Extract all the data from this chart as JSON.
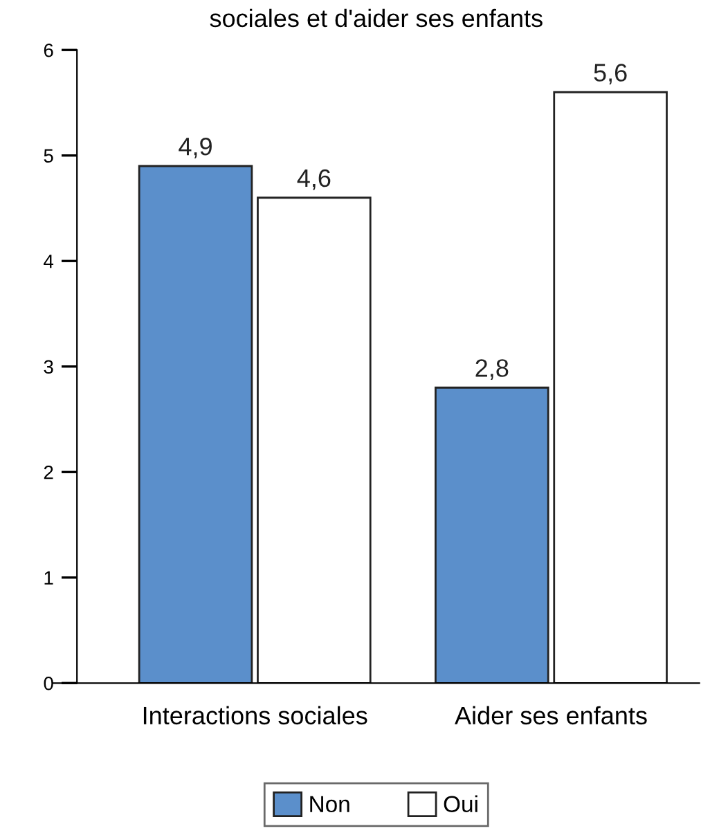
{
  "chart_data": {
    "type": "bar",
    "title": "sociales et d'aider ses enfants",
    "categories": [
      "Interactions sociales",
      "Aider ses enfants"
    ],
    "series": [
      {
        "name": "Non",
        "color": "#5b8fcb",
        "values": [
          4.9,
          2.8
        ],
        "value_labels": [
          "4,9",
          "2,8"
        ]
      },
      {
        "name": "Oui",
        "color": "#ffffff",
        "values": [
          4.6,
          5.6
        ],
        "value_labels": [
          "4,6",
          "5,6"
        ]
      }
    ],
    "ylim": [
      0,
      6
    ],
    "yticks": [
      0,
      1,
      2,
      3,
      4,
      5,
      6
    ],
    "grid": false,
    "legend": "bottom"
  }
}
